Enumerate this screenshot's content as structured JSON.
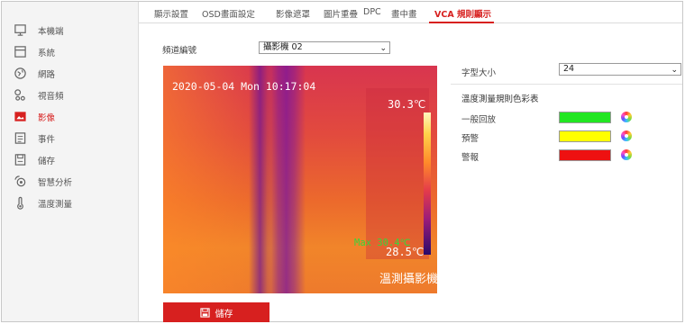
{
  "sidebar": {
    "items": [
      {
        "label": "本機端",
        "icon": "monitor-icon"
      },
      {
        "label": "系統",
        "icon": "system-icon"
      },
      {
        "label": "網路",
        "icon": "globe-icon"
      },
      {
        "label": "視音頻",
        "icon": "audio-video-icon"
      },
      {
        "label": "影像",
        "icon": "image-icon",
        "active": true
      },
      {
        "label": "事件",
        "icon": "event-icon"
      },
      {
        "label": "儲存",
        "icon": "storage-icon"
      },
      {
        "label": "智慧分析",
        "icon": "analysis-icon"
      },
      {
        "label": "溫度測量",
        "icon": "thermometer-icon"
      }
    ]
  },
  "tabs": [
    {
      "label": "顯示設置"
    },
    {
      "label": "OSD畫面設定"
    },
    {
      "label": "影像遮罩"
    },
    {
      "label": "圖片重疊"
    },
    {
      "label": "DPC"
    },
    {
      "label": "畫中畫"
    },
    {
      "label": "VCA 規則顯示",
      "active": true
    }
  ],
  "channel": {
    "label": "頻道編號",
    "value": "攝影機 02"
  },
  "thermal": {
    "timestamp": "2020-05-04 Mon 10:17:04",
    "max_temp": "30.3℃",
    "min_temp": "28.5℃",
    "max_label": "Max 30.4℃",
    "watermark": "溫測攝影機"
  },
  "font_size": {
    "label": "字型大小",
    "value": "24"
  },
  "color_table": {
    "title": "溫度測量規則色彩表",
    "rows": [
      {
        "label": "一般回放",
        "color": "#22e622"
      },
      {
        "label": "預警",
        "color": "#ffff00"
      },
      {
        "label": "警報",
        "color": "#ee1111"
      }
    ]
  },
  "save_button": {
    "label": "儲存"
  },
  "accent_color": "#d7201f"
}
